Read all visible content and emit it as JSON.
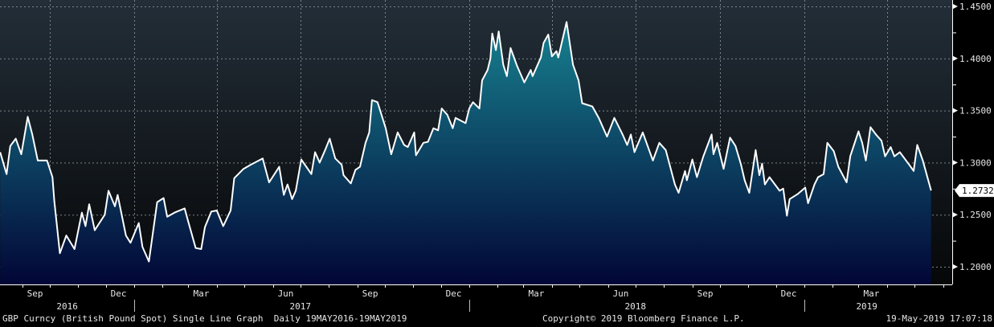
{
  "chart_data": {
    "type": "area",
    "title": "GBP Curncy (British Pound Spot) Single Line Graph",
    "frequency": "Daily",
    "date_range": "19MAY2016-19MAY2019",
    "ylim": [
      1.183,
      1.455
    ],
    "y_ticks": [
      "1.4500",
      "1.4000",
      "1.3500",
      "1.3000",
      "1.2500",
      "1.2000"
    ],
    "y_tick_values": [
      1.45,
      1.4,
      1.35,
      1.3,
      1.25,
      1.2
    ],
    "y_axis_side": "right",
    "last_value": "1.2732",
    "month_labels": [
      {
        "label": "Sep",
        "date": "2016-09-15"
      },
      {
        "label": "Dec",
        "date": "2016-12-15"
      },
      {
        "label": "Mar",
        "date": "2017-03-15"
      },
      {
        "label": "Jun",
        "date": "2017-06-15"
      },
      {
        "label": "Sep",
        "date": "2017-09-15"
      },
      {
        "label": "Dec",
        "date": "2017-12-15"
      },
      {
        "label": "Mar",
        "date": "2018-03-15"
      },
      {
        "label": "Jun",
        "date": "2018-06-15"
      },
      {
        "label": "Sep",
        "date": "2018-09-15"
      },
      {
        "label": "Dec",
        "date": "2018-12-15"
      },
      {
        "label": "Mar",
        "date": "2019-03-15"
      }
    ],
    "year_labels": [
      {
        "label": "2016",
        "date": "2016-10-20"
      },
      {
        "label": "2017",
        "date": "2017-07-01"
      },
      {
        "label": "2018",
        "date": "2018-07-01"
      },
      {
        "label": "2019",
        "date": "2019-03-10"
      }
    ],
    "grid": true,
    "colors": {
      "line": "#ffffff",
      "fill_top": "#17808f",
      "fill_bottom": "#020636",
      "bg_top": "#232e38",
      "bg_bottom": "#060708"
    },
    "series": [
      {
        "points": [
          [
            "2016-08-08",
            1.31
          ],
          [
            "2016-08-15",
            1.289
          ],
          [
            "2016-08-19",
            1.316
          ],
          [
            "2016-08-25",
            1.323
          ],
          [
            "2016-08-31",
            1.308
          ],
          [
            "2016-09-07",
            1.344
          ],
          [
            "2016-09-12",
            1.327
          ],
          [
            "2016-09-18",
            1.302
          ],
          [
            "2016-09-28",
            1.302
          ],
          [
            "2016-10-04",
            1.286
          ],
          [
            "2016-10-06",
            1.263
          ],
          [
            "2016-10-12",
            1.213
          ],
          [
            "2016-10-19",
            1.23
          ],
          [
            "2016-10-28",
            1.217
          ],
          [
            "2016-11-05",
            1.252
          ],
          [
            "2016-11-09",
            1.239
          ],
          [
            "2016-11-13",
            1.26
          ],
          [
            "2016-11-19",
            1.235
          ],
          [
            "2016-11-30",
            1.25
          ],
          [
            "2016-12-04",
            1.273
          ],
          [
            "2016-12-11",
            1.258
          ],
          [
            "2016-12-14",
            1.269
          ],
          [
            "2016-12-23",
            1.23
          ],
          [
            "2016-12-28",
            1.223
          ],
          [
            "2017-01-06",
            1.242
          ],
          [
            "2017-01-10",
            1.219
          ],
          [
            "2017-01-17",
            1.205
          ],
          [
            "2017-01-26",
            1.262
          ],
          [
            "2017-02-02",
            1.266
          ],
          [
            "2017-02-06",
            1.248
          ],
          [
            "2017-02-14",
            1.252
          ],
          [
            "2017-02-25",
            1.256
          ],
          [
            "2017-02-28",
            1.246
          ],
          [
            "2017-03-09",
            1.218
          ],
          [
            "2017-03-15",
            1.217
          ],
          [
            "2017-03-19",
            1.238
          ],
          [
            "2017-03-26",
            1.253
          ],
          [
            "2017-04-01",
            1.254
          ],
          [
            "2017-04-08",
            1.239
          ],
          [
            "2017-04-16",
            1.254
          ],
          [
            "2017-04-20",
            1.285
          ],
          [
            "2017-04-30",
            1.294
          ],
          [
            "2017-05-08",
            1.298
          ],
          [
            "2017-05-21",
            1.304
          ],
          [
            "2017-05-28",
            1.281
          ],
          [
            "2017-06-08",
            1.296
          ],
          [
            "2017-06-13",
            1.269
          ],
          [
            "2017-06-17",
            1.279
          ],
          [
            "2017-06-22",
            1.265
          ],
          [
            "2017-06-26",
            1.273
          ],
          [
            "2017-07-02",
            1.303
          ],
          [
            "2017-07-13",
            1.289
          ],
          [
            "2017-07-17",
            1.31
          ],
          [
            "2017-07-22",
            1.3
          ],
          [
            "2017-07-28",
            1.312
          ],
          [
            "2017-08-02",
            1.323
          ],
          [
            "2017-08-08",
            1.304
          ],
          [
            "2017-08-15",
            1.298
          ],
          [
            "2017-08-17",
            1.288
          ],
          [
            "2017-08-25",
            1.28
          ],
          [
            "2017-08-30",
            1.293
          ],
          [
            "2017-09-04",
            1.296
          ],
          [
            "2017-09-10",
            1.319
          ],
          [
            "2017-09-14",
            1.329
          ],
          [
            "2017-09-17",
            1.36
          ],
          [
            "2017-09-23",
            1.358
          ],
          [
            "2017-10-02",
            1.333
          ],
          [
            "2017-10-08",
            1.308
          ],
          [
            "2017-10-15",
            1.329
          ],
          [
            "2017-10-22",
            1.317
          ],
          [
            "2017-10-26",
            1.315
          ],
          [
            "2017-11-02",
            1.329
          ],
          [
            "2017-11-04",
            1.307
          ],
          [
            "2017-11-12",
            1.319
          ],
          [
            "2017-11-17",
            1.32
          ],
          [
            "2017-11-23",
            1.333
          ],
          [
            "2017-11-28",
            1.331
          ],
          [
            "2017-12-02",
            1.352
          ],
          [
            "2017-12-08",
            1.346
          ],
          [
            "2017-12-14",
            1.333
          ],
          [
            "2017-12-17",
            1.343
          ],
          [
            "2017-12-28",
            1.338
          ],
          [
            "2018-01-01",
            1.352
          ],
          [
            "2018-01-05",
            1.358
          ],
          [
            "2018-01-12",
            1.352
          ],
          [
            "2018-01-15",
            1.379
          ],
          [
            "2018-01-21",
            1.389
          ],
          [
            "2018-01-24",
            1.4
          ],
          [
            "2018-01-26",
            1.424
          ],
          [
            "2018-01-30",
            1.408
          ],
          [
            "2018-02-02",
            1.426
          ],
          [
            "2018-02-07",
            1.394
          ],
          [
            "2018-02-11",
            1.383
          ],
          [
            "2018-02-15",
            1.41
          ],
          [
            "2018-02-22",
            1.393
          ],
          [
            "2018-03-02",
            1.377
          ],
          [
            "2018-03-09",
            1.389
          ],
          [
            "2018-03-11",
            1.383
          ],
          [
            "2018-03-20",
            1.401
          ],
          [
            "2018-03-23",
            1.415
          ],
          [
            "2018-03-28",
            1.423
          ],
          [
            "2018-04-01",
            1.402
          ],
          [
            "2018-04-06",
            1.407
          ],
          [
            "2018-04-08",
            1.401
          ],
          [
            "2018-04-17",
            1.435
          ],
          [
            "2018-04-24",
            1.394
          ],
          [
            "2018-04-30",
            1.379
          ],
          [
            "2018-05-04",
            1.357
          ],
          [
            "2018-05-15",
            1.354
          ],
          [
            "2018-05-22",
            1.343
          ],
          [
            "2018-05-31",
            1.325
          ],
          [
            "2018-06-08",
            1.343
          ],
          [
            "2018-06-17",
            1.327
          ],
          [
            "2018-06-22",
            1.317
          ],
          [
            "2018-06-26",
            1.327
          ],
          [
            "2018-06-30",
            1.31
          ],
          [
            "2018-07-09",
            1.329
          ],
          [
            "2018-07-20",
            1.302
          ],
          [
            "2018-07-27",
            1.319
          ],
          [
            "2018-08-03",
            1.312
          ],
          [
            "2018-08-13",
            1.279
          ],
          [
            "2018-08-17",
            1.271
          ],
          [
            "2018-08-24",
            1.292
          ],
          [
            "2018-08-26",
            1.283
          ],
          [
            "2018-09-01",
            1.303
          ],
          [
            "2018-09-06",
            1.286
          ],
          [
            "2018-09-13",
            1.306
          ],
          [
            "2018-09-22",
            1.327
          ],
          [
            "2018-09-24",
            1.308
          ],
          [
            "2018-09-28",
            1.319
          ],
          [
            "2018-10-05",
            1.294
          ],
          [
            "2018-10-12",
            1.324
          ],
          [
            "2018-10-18",
            1.316
          ],
          [
            "2018-10-24",
            1.298
          ],
          [
            "2018-10-28",
            1.283
          ],
          [
            "2018-11-02",
            1.271
          ],
          [
            "2018-11-09",
            1.312
          ],
          [
            "2018-11-13",
            1.288
          ],
          [
            "2018-11-16",
            1.299
          ],
          [
            "2018-11-19",
            1.279
          ],
          [
            "2018-11-24",
            1.286
          ],
          [
            "2018-12-05",
            1.273
          ],
          [
            "2018-12-09",
            1.275
          ],
          [
            "2018-12-13",
            1.249
          ],
          [
            "2018-12-16",
            1.265
          ],
          [
            "2018-12-25",
            1.27
          ],
          [
            "2019-01-02",
            1.276
          ],
          [
            "2019-01-05",
            1.261
          ],
          [
            "2019-01-12",
            1.279
          ],
          [
            "2019-01-16",
            1.286
          ],
          [
            "2019-01-22",
            1.289
          ],
          [
            "2019-01-26",
            1.319
          ],
          [
            "2019-02-02",
            1.311
          ],
          [
            "2019-02-07",
            1.296
          ],
          [
            "2019-02-16",
            1.281
          ],
          [
            "2019-02-20",
            1.306
          ],
          [
            "2019-03-01",
            1.33
          ],
          [
            "2019-03-05",
            1.319
          ],
          [
            "2019-03-09",
            1.302
          ],
          [
            "2019-03-14",
            1.334
          ],
          [
            "2019-03-20",
            1.327
          ],
          [
            "2019-03-26",
            1.321
          ],
          [
            "2019-03-30",
            1.306
          ],
          [
            "2019-04-05",
            1.315
          ],
          [
            "2019-04-09",
            1.306
          ],
          [
            "2019-04-15",
            1.31
          ],
          [
            "2019-04-26",
            1.297
          ],
          [
            "2019-04-30",
            1.292
          ],
          [
            "2019-05-04",
            1.317
          ],
          [
            "2019-05-10",
            1.302
          ],
          [
            "2019-05-19",
            1.2732
          ]
        ]
      }
    ]
  },
  "footer": {
    "left": "GBP Curncy (British Pound Spot) Single Line Graph  Daily 19MAY2016-19MAY2019",
    "center": "Copyright© 2019 Bloomberg Finance L.P.",
    "right": "19-May-2019 17:07:18"
  }
}
